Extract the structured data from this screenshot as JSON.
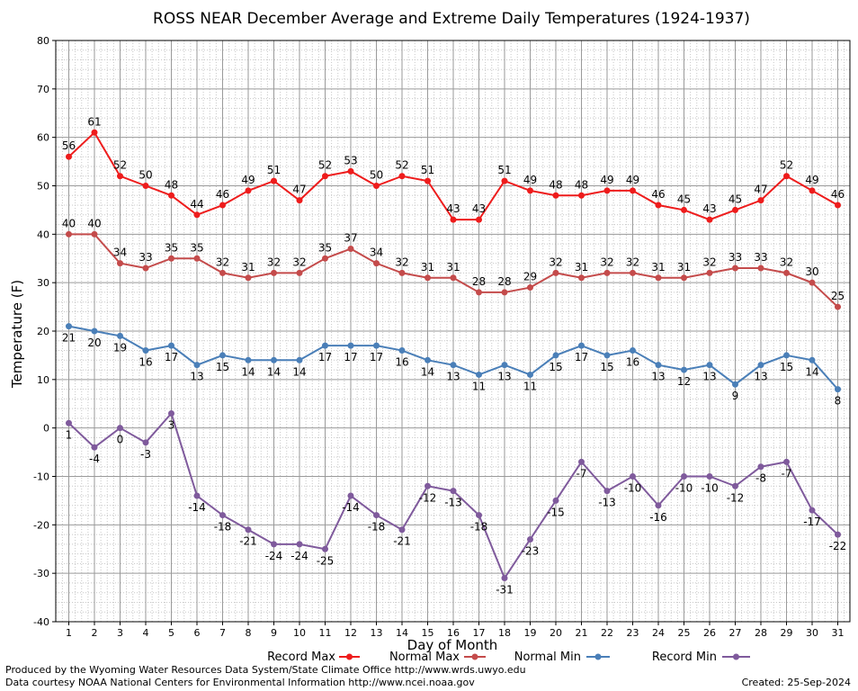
{
  "chart_data": {
    "type": "line",
    "title": "ROSS NEAR December Average and Extreme Daily Temperatures (1924-1937)",
    "xlabel": "Day of Month",
    "ylabel": "Temperature (F)",
    "ylim": [
      -40,
      80
    ],
    "y_ticks": [
      "80",
      "70",
      "60",
      "50",
      "40",
      "30",
      "20",
      "10",
      "0",
      "-10",
      "-20",
      "-30",
      "-40"
    ],
    "categories": [
      "1",
      "2",
      "3",
      "4",
      "5",
      "6",
      "7",
      "8",
      "9",
      "10",
      "11",
      "12",
      "13",
      "14",
      "15",
      "16",
      "17",
      "18",
      "19",
      "20",
      "21",
      "22",
      "23",
      "24",
      "25",
      "26",
      "27",
      "28",
      "29",
      "30",
      "31"
    ],
    "grid": true,
    "legend_position": "bottom",
    "series": [
      {
        "name": "Record Max",
        "color": "#ee1c1c",
        "label_pos": "above",
        "values": [
          56,
          61,
          52,
          50,
          48,
          44,
          46,
          49,
          51,
          47,
          52,
          53,
          50,
          52,
          51,
          43,
          43,
          51,
          49,
          48,
          48,
          49,
          49,
          46,
          45,
          43,
          45,
          47,
          52,
          49,
          46
        ]
      },
      {
        "name": "Normal Max",
        "color": "#c44b4b",
        "label_pos": "above",
        "values": [
          40,
          40,
          34,
          33,
          35,
          35,
          32,
          31,
          32,
          32,
          35,
          37,
          34,
          32,
          31,
          31,
          28,
          28,
          29,
          32,
          31,
          32,
          32,
          31,
          31,
          32,
          33,
          33,
          32,
          30,
          25
        ]
      },
      {
        "name": "Normal Min",
        "color": "#4a7fb8",
        "label_pos": "below",
        "values": [
          21,
          20,
          19,
          16,
          17,
          13,
          15,
          14,
          14,
          14,
          17,
          17,
          17,
          16,
          14,
          13,
          11,
          13,
          11,
          15,
          17,
          15,
          16,
          13,
          12,
          13,
          9,
          13,
          15,
          14,
          8
        ]
      },
      {
        "name": "Record Min",
        "color": "#7f5a9c",
        "label_pos": "below",
        "values": [
          1,
          -4,
          0,
          -3,
          3,
          -14,
          -18,
          -21,
          -24,
          -24,
          -25,
          -14,
          -18,
          -21,
          -12,
          -13,
          -18,
          -31,
          -23,
          -15,
          -7,
          -13,
          -10,
          -16,
          -10,
          -10,
          -12,
          -8,
          -7,
          -17,
          -22
        ]
      }
    ]
  },
  "footer": {
    "produced_by": "Produced by the Wyoming Water Resources Data System/State Climate Office http://www.wrds.uwyo.edu",
    "data_courtesy": "Data courtesy NOAA National Centers for Environmental Information http://www.ncei.noaa.gov",
    "created": "Created: 25-Sep-2024"
  }
}
